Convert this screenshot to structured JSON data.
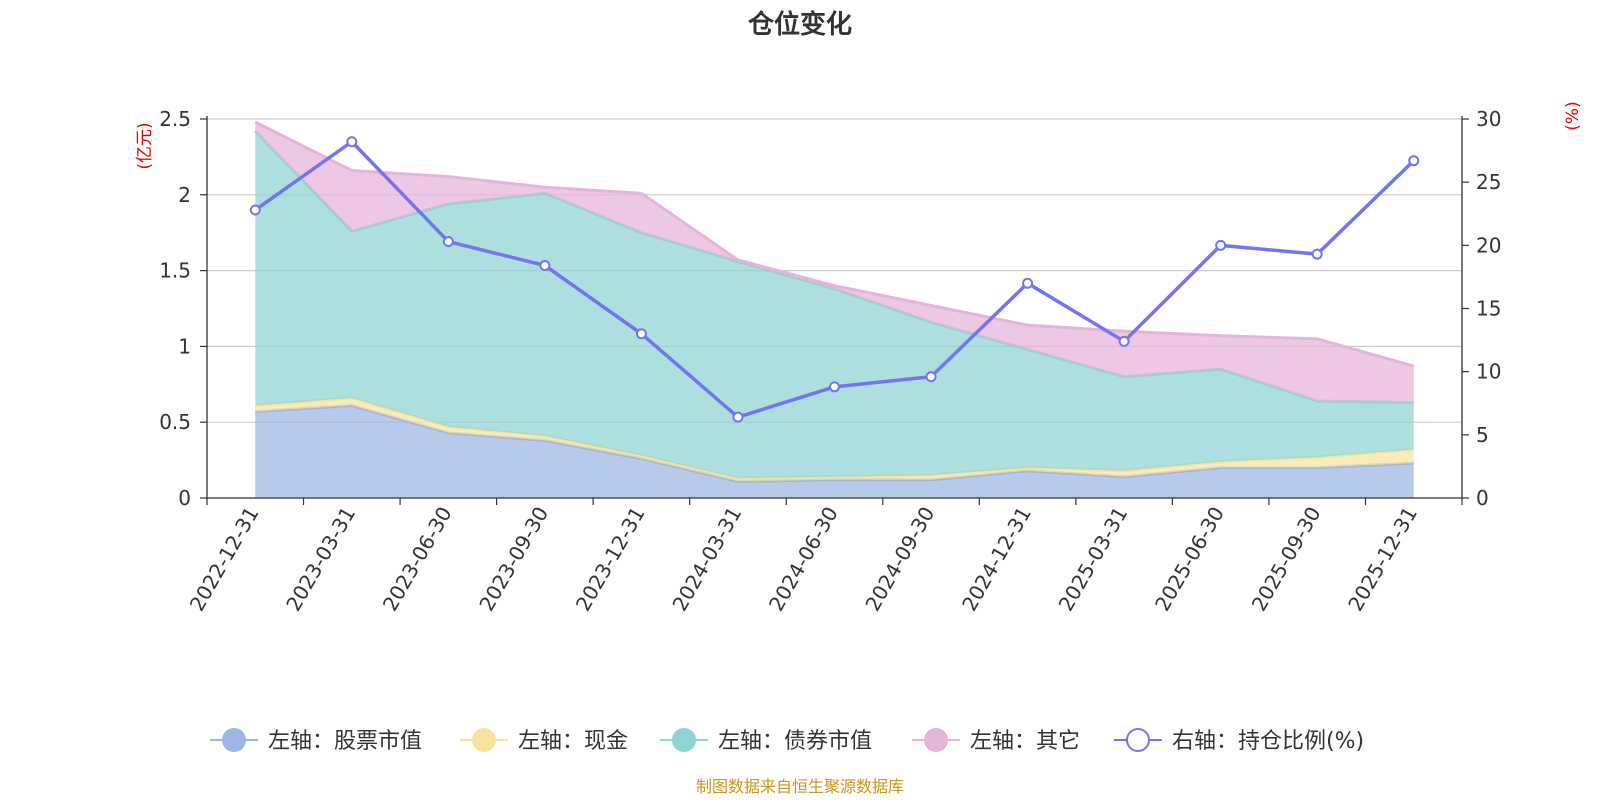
{
  "chart_data": {
    "type": "area",
    "title": "仓位变化",
    "categories": [
      "2022-12-31",
      "2023-03-31",
      "2023-06-30",
      "2023-09-30",
      "2023-12-31",
      "2024-03-31",
      "2024-06-30",
      "2024-09-30",
      "2024-12-31",
      "2025-03-31",
      "2025-06-30",
      "2025-09-30",
      "2025-12-31"
    ],
    "left_axis": {
      "unit": "(亿元)",
      "ylim": [
        0,
        2.5
      ],
      "ticks": [
        "0",
        "0.5",
        "1",
        "1.5",
        "2",
        "2.5"
      ]
    },
    "right_axis": {
      "unit": "(%)",
      "ylim": [
        0,
        30
      ],
      "ticks": [
        "0",
        "5",
        "10",
        "15",
        "20",
        "25",
        "30"
      ]
    },
    "stacked_series": [
      {
        "name": "左轴：股票市值",
        "axis": "left",
        "color": "#9db5e0",
        "values": [
          0.57,
          0.61,
          0.43,
          0.38,
          0.26,
          0.11,
          0.12,
          0.12,
          0.18,
          0.14,
          0.2,
          0.2,
          0.23
        ]
      },
      {
        "name": "左轴：现金",
        "axis": "left",
        "color": "#f7e3a0",
        "values": [
          0.04,
          0.05,
          0.04,
          0.03,
          0.02,
          0.02,
          0.02,
          0.03,
          0.02,
          0.04,
          0.04,
          0.07,
          0.09
        ]
      },
      {
        "name": "左轴：债券市值",
        "axis": "left",
        "color": "#8fd3d3",
        "values": [
          1.81,
          1.1,
          1.47,
          1.6,
          1.47,
          1.43,
          1.24,
          1.01,
          0.78,
          0.62,
          0.61,
          0.37,
          0.31
        ]
      },
      {
        "name": "左轴：其它",
        "axis": "left",
        "color": "#e6b3d9",
        "values": [
          0.06,
          0.4,
          0.18,
          0.04,
          0.26,
          0.01,
          0.02,
          0.11,
          0.16,
          0.3,
          0.22,
          0.41,
          0.24
        ]
      }
    ],
    "line_series": {
      "name": "右轴：持仓比例(%)",
      "axis": "right",
      "color": "#7474f0",
      "values": [
        22.8,
        28.2,
        20.3,
        18.4,
        13.0,
        6.4,
        8.8,
        9.6,
        17.0,
        12.4,
        20.0,
        19.3,
        26.7
      ]
    }
  },
  "footer": {
    "source": "制图数据来自恒生聚源数据库"
  }
}
